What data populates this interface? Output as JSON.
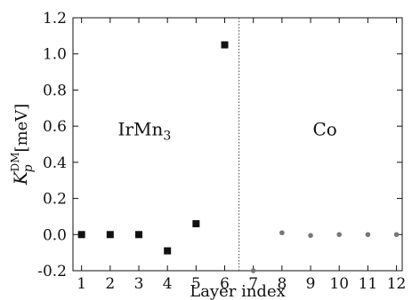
{
  "chart_data": {
    "type": "scatter",
    "x_ticks": [
      "1",
      "2",
      "3",
      "4",
      "5",
      "6",
      "7",
      "8",
      "9",
      "10",
      "11",
      "12"
    ],
    "y_ticks": [
      "-0.2",
      "0.0",
      "0.2",
      "0.4",
      "0.6",
      "0.8",
      "1.0",
      "1.2"
    ],
    "xlim": [
      0.7,
      12.2
    ],
    "ylim": [
      -0.2,
      1.2
    ],
    "xlabel": "Layer index",
    "ylabel": {
      "symbol": "K",
      "subscript": "p",
      "superscript": "DM",
      "unit": "[meV]"
    },
    "divider_x": 6.5,
    "region_labels": {
      "left": {
        "base": "IrMn",
        "subscript": "3"
      },
      "right": {
        "base": "Co",
        "subscript": ""
      }
    },
    "series": [
      {
        "marker": "square",
        "color": "#111111",
        "points": [
          {
            "x": 1,
            "y": 0.0
          },
          {
            "x": 2,
            "y": 0.0
          },
          {
            "x": 3,
            "y": 0.0
          },
          {
            "x": 4,
            "y": -0.09
          },
          {
            "x": 5,
            "y": 0.06
          },
          {
            "x": 6,
            "y": 1.05
          }
        ]
      },
      {
        "marker": "circle",
        "color": "#777777",
        "points": [
          {
            "x": 7,
            "y": -0.2
          },
          {
            "x": 8,
            "y": 0.01
          },
          {
            "x": 9,
            "y": -0.005
          },
          {
            "x": 10,
            "y": 0.0
          },
          {
            "x": 11,
            "y": 0.0
          },
          {
            "x": 12,
            "y": 0.0
          }
        ]
      }
    ]
  }
}
